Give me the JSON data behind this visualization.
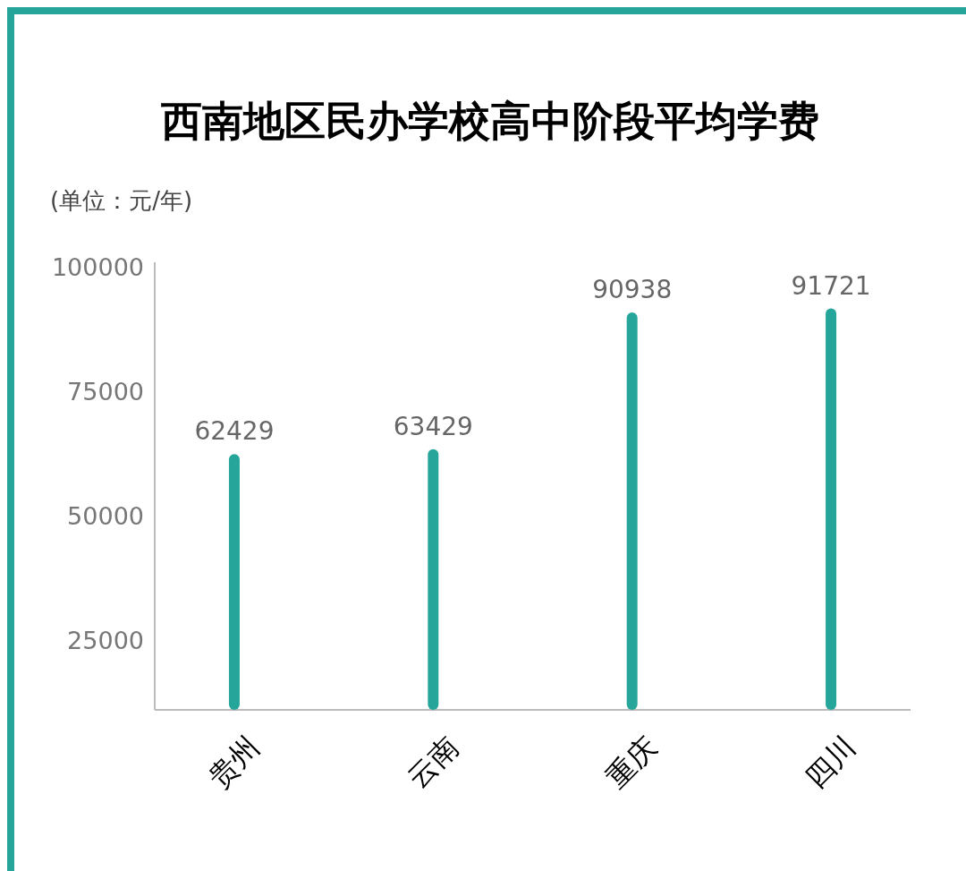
{
  "chart_data": {
    "type": "bar",
    "title": "西南地区民办学校高中阶段平均学费",
    "ylabel": "(单位：元/年)",
    "categories": [
      "贵州",
      "云南",
      "重庆",
      "四川"
    ],
    "values": [
      62429,
      63429,
      90938,
      91721
    ],
    "color": "#26a69a",
    "ylim": [
      11000,
      101000
    ],
    "yticks": [
      25000,
      50000,
      75000,
      100000
    ],
    "grid": false,
    "data_labels": true
  }
}
